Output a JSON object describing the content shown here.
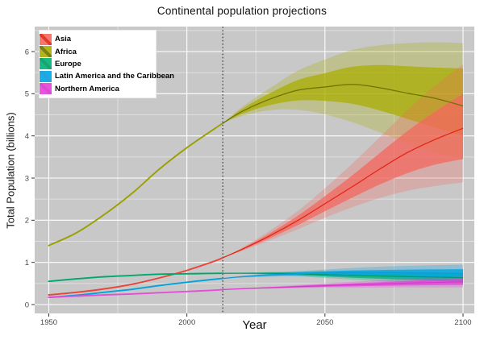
{
  "chart_data": {
    "type": "line",
    "title": "Continental population projections",
    "xlabel": "Year",
    "ylabel": "Total Population (billions)",
    "x_ticks": [
      1950,
      2000,
      2050,
      2100
    ],
    "x_minor_ticks": [
      1975,
      2025,
      2075
    ],
    "y_ticks": [
      0,
      1,
      2,
      3,
      4,
      5,
      6
    ],
    "y_minor_ticks": [
      0.5,
      1.5,
      2.5,
      3.5,
      4.5,
      5.5,
      6.5
    ],
    "xlim": [
      1948,
      2103
    ],
    "ylim": [
      -0.21,
      6.59
    ],
    "projection_start_year": 2013,
    "legend_position": "top-left",
    "grid": "major-minor",
    "panel_bg": "#C8C8C8",
    "grid_major_color": "#FFFFFF",
    "grid_minor_color": "rgba(255,255,255,0.42)",
    "tick_color": "#333333",
    "tick_label_color": "#4a4a4a",
    "band_opacity_inner": 0.75,
    "band_opacity_outer": 0.28,
    "series": [
      {
        "name": "Asia",
        "colors": {
          "band": "#A9AD00",
          "line": "#9AA000",
          "median": "#6E7200"
        },
        "history": {
          "years": [
            1950,
            1960,
            1970,
            1980,
            1990,
            2000,
            2010,
            2013
          ],
          "values": [
            1.4,
            1.7,
            2.13,
            2.63,
            3.21,
            3.72,
            4.17,
            4.3
          ]
        },
        "projection": {
          "years": [
            2013,
            2020,
            2030,
            2040,
            2050,
            2060,
            2070,
            2080,
            2090,
            2100
          ],
          "median": [
            4.3,
            4.58,
            4.87,
            5.08,
            5.16,
            5.22,
            5.14,
            5.01,
            4.89,
            4.71
          ],
          "lo80": [
            4.3,
            4.52,
            4.73,
            4.84,
            4.83,
            4.76,
            4.6,
            4.4,
            4.2,
            4.0
          ],
          "hi80": [
            4.3,
            4.64,
            5.01,
            5.32,
            5.49,
            5.64,
            5.68,
            5.65,
            5.62,
            5.6
          ],
          "lo95": [
            4.3,
            4.47,
            4.61,
            4.62,
            4.51,
            4.32,
            4.08,
            3.82,
            3.6,
            3.45
          ],
          "hi95": [
            4.3,
            4.69,
            5.13,
            5.54,
            5.81,
            6.04,
            6.15,
            6.2,
            6.22,
            6.2
          ]
        }
      },
      {
        "name": "Africa",
        "colors": {
          "band": "#F3685D",
          "line": "#E8443A",
          "median": "#E42313"
        },
        "history": {
          "years": [
            1950,
            1960,
            1970,
            1980,
            1990,
            2000,
            2010,
            2013
          ],
          "values": [
            0.23,
            0.29,
            0.37,
            0.48,
            0.63,
            0.81,
            1.03,
            1.11
          ]
        },
        "projection": {
          "years": [
            2013,
            2020,
            2030,
            2040,
            2050,
            2060,
            2070,
            2080,
            2090,
            2100
          ],
          "median": [
            1.11,
            1.31,
            1.63,
            1.99,
            2.39,
            2.8,
            3.22,
            3.61,
            3.92,
            4.18
          ],
          "lo80": [
            1.11,
            1.29,
            1.57,
            1.88,
            2.21,
            2.54,
            2.85,
            3.12,
            3.32,
            3.45
          ],
          "hi80": [
            1.11,
            1.33,
            1.69,
            2.1,
            2.57,
            3.07,
            3.6,
            4.12,
            4.58,
            5.0
          ],
          "lo95": [
            1.11,
            1.27,
            1.52,
            1.78,
            2.06,
            2.31,
            2.53,
            2.7,
            2.81,
            2.9
          ],
          "hi95": [
            1.11,
            1.35,
            1.75,
            2.21,
            2.76,
            3.35,
            3.98,
            4.62,
            5.2,
            5.7
          ]
        }
      },
      {
        "name": "Europe",
        "colors": {
          "band": "#00B377",
          "line": "#00A76D",
          "median": "#009A64"
        },
        "history": {
          "years": [
            1950,
            1960,
            1970,
            1980,
            1990,
            2000,
            2010,
            2013
          ],
          "values": [
            0.55,
            0.61,
            0.66,
            0.69,
            0.72,
            0.73,
            0.74,
            0.742
          ]
        },
        "projection": {
          "years": [
            2013,
            2020,
            2030,
            2040,
            2050,
            2060,
            2070,
            2080,
            2090,
            2100
          ],
          "median": [
            0.742,
            0.744,
            0.741,
            0.729,
            0.709,
            0.693,
            0.678,
            0.664,
            0.652,
            0.639
          ],
          "lo80": [
            0.742,
            0.738,
            0.722,
            0.698,
            0.666,
            0.637,
            0.611,
            0.588,
            0.566,
            0.545
          ],
          "hi80": [
            0.742,
            0.75,
            0.76,
            0.761,
            0.755,
            0.752,
            0.748,
            0.744,
            0.741,
            0.738
          ],
          "lo95": [
            0.742,
            0.734,
            0.708,
            0.672,
            0.63,
            0.59,
            0.553,
            0.52,
            0.49,
            0.462
          ],
          "hi95": [
            0.742,
            0.754,
            0.774,
            0.788,
            0.796,
            0.804,
            0.812,
            0.82,
            0.826,
            0.83
          ]
        }
      },
      {
        "name": "Latin America and the Caribbean",
        "colors": {
          "band": "#00A6E6",
          "line": "#00A3DC",
          "median": "#0F9BD8"
        },
        "history": {
          "years": [
            1950,
            1960,
            1970,
            1980,
            1990,
            2000,
            2010,
            2013
          ],
          "values": [
            0.17,
            0.22,
            0.29,
            0.36,
            0.45,
            0.53,
            0.6,
            0.62
          ]
        },
        "projection": {
          "years": [
            2013,
            2020,
            2030,
            2040,
            2050,
            2060,
            2070,
            2080,
            2090,
            2100
          ],
          "median": [
            0.62,
            0.66,
            0.7,
            0.73,
            0.75,
            0.76,
            0.76,
            0.755,
            0.745,
            0.736
          ],
          "lo80": [
            0.62,
            0.65,
            0.68,
            0.7,
            0.71,
            0.71,
            0.7,
            0.685,
            0.665,
            0.645
          ],
          "hi80": [
            0.62,
            0.67,
            0.72,
            0.76,
            0.79,
            0.81,
            0.82,
            0.83,
            0.835,
            0.84
          ],
          "lo95": [
            0.62,
            0.64,
            0.66,
            0.67,
            0.67,
            0.66,
            0.64,
            0.615,
            0.585,
            0.555
          ],
          "hi95": [
            0.62,
            0.68,
            0.74,
            0.79,
            0.83,
            0.87,
            0.9,
            0.92,
            0.935,
            0.945
          ]
        }
      },
      {
        "name": "Northern America",
        "colors": {
          "band": "#E640DC",
          "line": "#E14FD8",
          "median": "#D838CE"
        },
        "history": {
          "years": [
            1950,
            1960,
            1970,
            1980,
            1990,
            2000,
            2010,
            2013
          ],
          "values": [
            0.17,
            0.2,
            0.23,
            0.25,
            0.28,
            0.31,
            0.34,
            0.355
          ]
        },
        "projection": {
          "years": [
            2013,
            2020,
            2030,
            2040,
            2050,
            2060,
            2070,
            2080,
            2090,
            2100
          ],
          "median": [
            0.355,
            0.375,
            0.4,
            0.425,
            0.448,
            0.468,
            0.487,
            0.506,
            0.524,
            0.54
          ],
          "lo80": [
            0.355,
            0.37,
            0.39,
            0.405,
            0.42,
            0.432,
            0.443,
            0.452,
            0.461,
            0.468
          ],
          "hi80": [
            0.355,
            0.38,
            0.412,
            0.445,
            0.476,
            0.504,
            0.531,
            0.56,
            0.587,
            0.612
          ],
          "lo95": [
            0.355,
            0.365,
            0.378,
            0.388,
            0.395,
            0.4,
            0.403,
            0.405,
            0.406,
            0.405
          ],
          "hi95": [
            0.355,
            0.385,
            0.422,
            0.465,
            0.504,
            0.54,
            0.575,
            0.614,
            0.65,
            0.685
          ]
        }
      }
    ]
  }
}
